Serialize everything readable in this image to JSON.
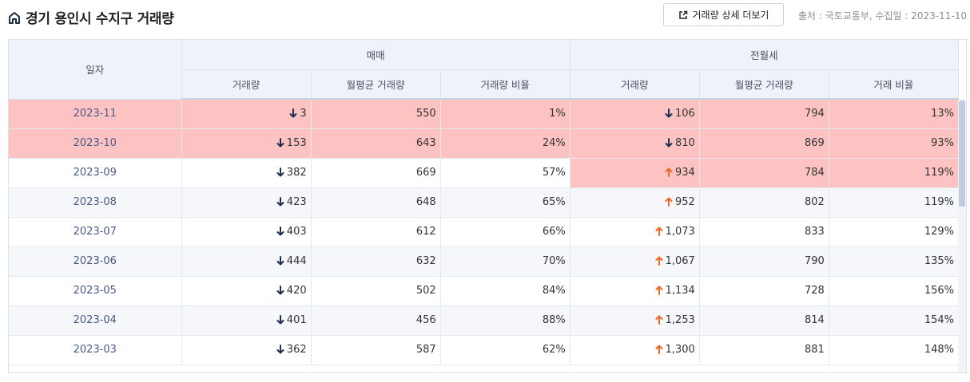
{
  "header": {
    "title": "경기 용인시 수지구 거래량",
    "detail_button": "거래량 상세 더보기",
    "source": "출처 : 국토교통부, 수집일 : 2023-11-10"
  },
  "table": {
    "date_header": "일자",
    "group_sale": "매매",
    "group_rent": "전월세",
    "col_sale_volume": "거래량",
    "col_sale_avg": "월평균 거래량",
    "col_sale_ratio": "거래량 비율",
    "col_rent_volume": "거래량",
    "col_rent_avg": "월평균 거래량",
    "col_rent_ratio": "거래 비율",
    "rows": [
      {
        "date": "2023-11",
        "sale_dir": "down",
        "sale": "3",
        "sale_avg": "550",
        "sale_ratio": "1%",
        "rent_dir": "down",
        "rent": "106",
        "rent_avg": "794",
        "rent_ratio": "13%",
        "sale_hl": true,
        "rent_hl": true
      },
      {
        "date": "2023-10",
        "sale_dir": "down",
        "sale": "153",
        "sale_avg": "643",
        "sale_ratio": "24%",
        "rent_dir": "down",
        "rent": "810",
        "rent_avg": "869",
        "rent_ratio": "93%",
        "sale_hl": true,
        "rent_hl": true
      },
      {
        "date": "2023-09",
        "sale_dir": "down",
        "sale": "382",
        "sale_avg": "669",
        "sale_ratio": "57%",
        "rent_dir": "up",
        "rent": "934",
        "rent_avg": "784",
        "rent_ratio": "119%",
        "sale_hl": false,
        "rent_hl": true
      },
      {
        "date": "2023-08",
        "sale_dir": "down",
        "sale": "423",
        "sale_avg": "648",
        "sale_ratio": "65%",
        "rent_dir": "up",
        "rent": "952",
        "rent_avg": "802",
        "rent_ratio": "119%",
        "sale_hl": false,
        "rent_hl": false
      },
      {
        "date": "2023-07",
        "sale_dir": "down",
        "sale": "403",
        "sale_avg": "612",
        "sale_ratio": "66%",
        "rent_dir": "up",
        "rent": "1,073",
        "rent_avg": "833",
        "rent_ratio": "129%",
        "sale_hl": false,
        "rent_hl": false
      },
      {
        "date": "2023-06",
        "sale_dir": "down",
        "sale": "444",
        "sale_avg": "632",
        "sale_ratio": "70%",
        "rent_dir": "up",
        "rent": "1,067",
        "rent_avg": "790",
        "rent_ratio": "135%",
        "sale_hl": false,
        "rent_hl": false
      },
      {
        "date": "2023-05",
        "sale_dir": "down",
        "sale": "420",
        "sale_avg": "502",
        "sale_ratio": "84%",
        "rent_dir": "up",
        "rent": "1,134",
        "rent_avg": "728",
        "rent_ratio": "156%",
        "sale_hl": false,
        "rent_hl": false
      },
      {
        "date": "2023-04",
        "sale_dir": "down",
        "sale": "401",
        "sale_avg": "456",
        "sale_ratio": "88%",
        "rent_dir": "up",
        "rent": "1,253",
        "rent_avg": "814",
        "rent_ratio": "154%",
        "sale_hl": false,
        "rent_hl": false
      },
      {
        "date": "2023-03",
        "sale_dir": "down",
        "sale": "362",
        "sale_avg": "587",
        "sale_ratio": "62%",
        "rent_dir": "up",
        "rent": "1,300",
        "rent_avg": "881",
        "rent_ratio": "148%",
        "sale_hl": false,
        "rent_hl": false
      }
    ]
  },
  "colors": {
    "highlight": "#fdc3c3",
    "arrow_up": "#f26522",
    "arrow_down": "#1f2d4d",
    "header_bg": "#eef2fa"
  },
  "icons": {
    "title": "home-icon",
    "detail_button": "external-link-icon",
    "increase": "arrow-up-icon",
    "decrease": "arrow-down-icon"
  }
}
